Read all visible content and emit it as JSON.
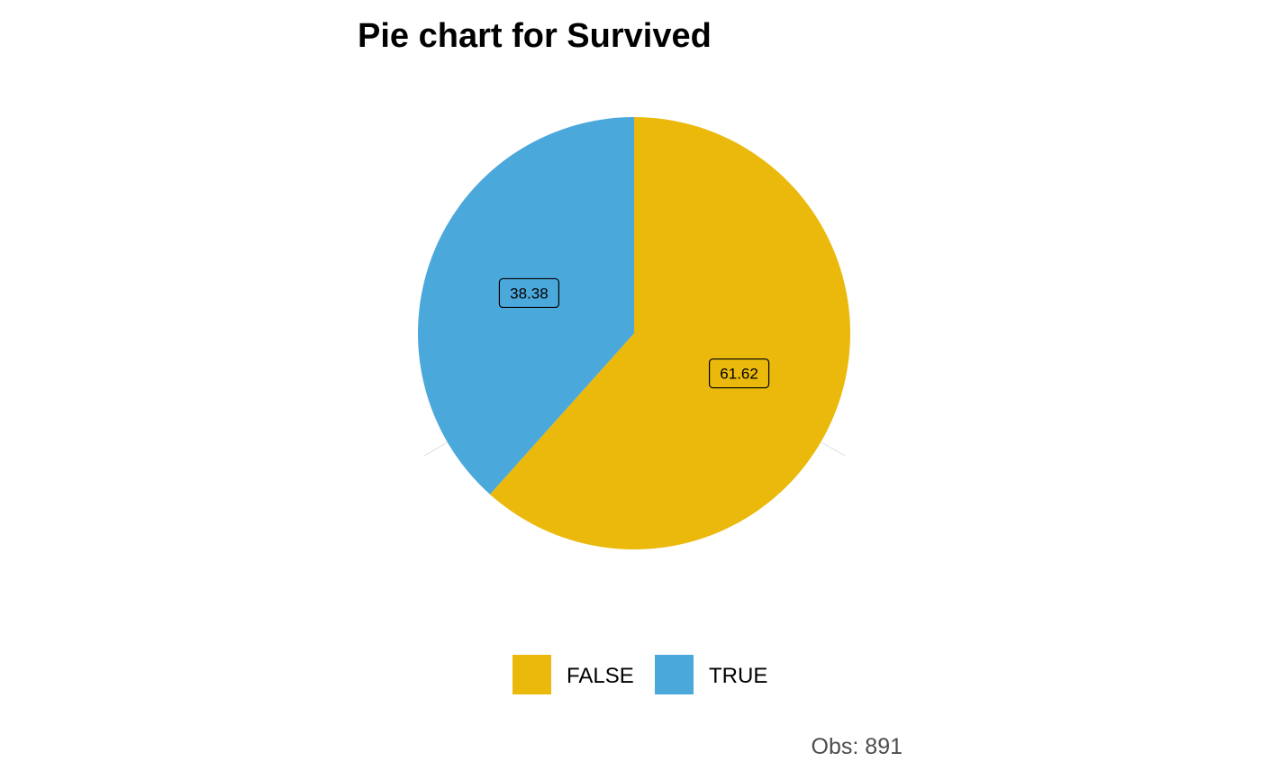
{
  "chart_data": {
    "type": "pie",
    "title": "Pie chart for Survived",
    "categories": [
      "FALSE",
      "TRUE"
    ],
    "values": [
      61.62,
      38.38
    ],
    "labels": [
      "61.62",
      "38.38"
    ],
    "colors": [
      "#EAB90C",
      "#4BA8DB"
    ],
    "legend_position": "bottom",
    "caption": "Obs: 891"
  }
}
